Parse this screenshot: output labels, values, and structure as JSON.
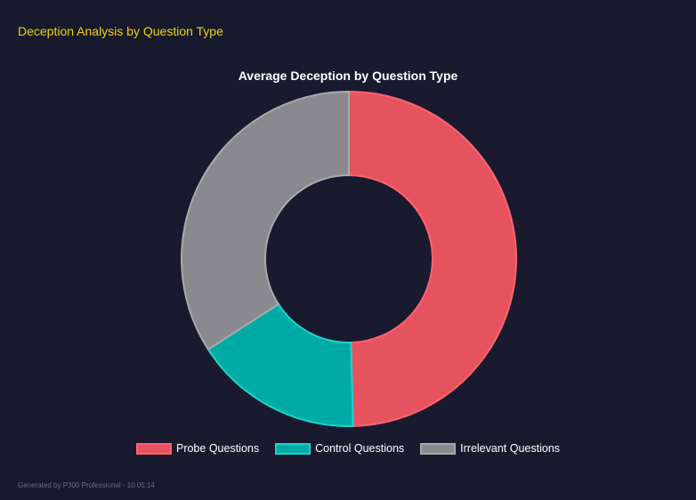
{
  "header": {
    "title": "Deception Analysis by Question Type"
  },
  "footer": {
    "text": "Generated by P300 Professional - 10:05:14"
  },
  "chart_data": {
    "type": "pie",
    "variant": "doughnut",
    "title": "Average Deception by Question Type",
    "legend_position": "bottom",
    "categories": [
      "Probe Questions",
      "Control Questions",
      "Irrelevant Questions"
    ],
    "values": [
      49.6,
      16.3,
      34.1
    ],
    "colors": [
      "#e5535f",
      "#00aba5",
      "#8a898f"
    ],
    "border_colors": [
      "#ff6370",
      "#19d6cc",
      "#a9a9ad"
    ]
  }
}
